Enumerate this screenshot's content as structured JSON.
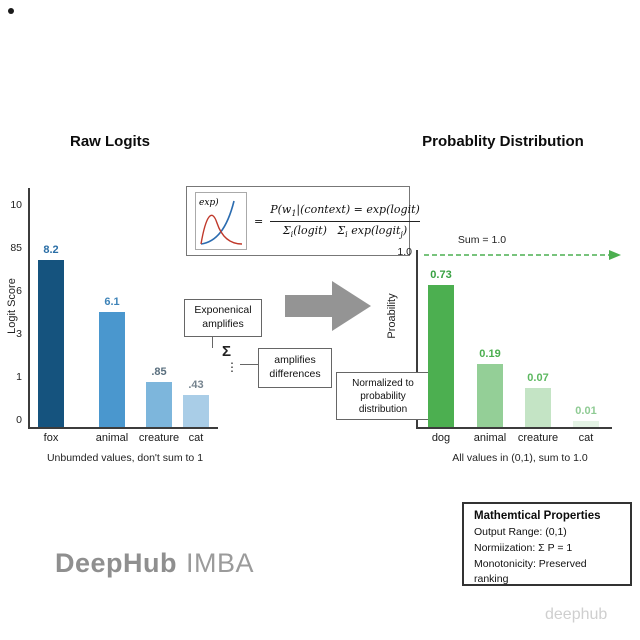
{
  "chart_data": [
    {
      "type": "bar",
      "title": "Raw Logits",
      "ylabel": "Logit Score",
      "yticks": [
        "10",
        "85",
        "6",
        "3",
        "1",
        "0"
      ],
      "ylim": [
        0,
        10
      ],
      "categories": [
        "fox",
        "animal",
        "creature",
        "cat"
      ],
      "values": [
        8.2,
        6.1,
        0.85,
        0.43
      ],
      "value_labels": [
        "8.2",
        "6.1",
        ".85",
        ".43"
      ],
      "bar_colors": [
        "#15537e",
        "#4a97ce",
        "#7db6dc",
        "#a9cde7"
      ],
      "label_colors": [
        "#2a6ea6",
        "#3e83b8",
        "#5a6f7e",
        "#75838e"
      ],
      "caption": "Unbumded values, don't sum to 1",
      "grid": false,
      "legend": false
    },
    {
      "type": "bar",
      "title": "Probablity Distribution",
      "ylabel": "Proability",
      "yticks": [
        "1.0"
      ],
      "ylim": [
        0,
        1
      ],
      "sum_annotation": "Sum = 1.0",
      "categories": [
        "dog",
        "animal",
        "creature",
        "cat"
      ],
      "values": [
        0.73,
        0.19,
        0.07,
        0.01
      ],
      "value_labels": [
        "0.73",
        "0.19",
        "0.07",
        "0.01"
      ],
      "bar_colors": [
        "#4caf50",
        "#94cf97",
        "#c4e4c5",
        "#e4f3e5"
      ],
      "label_colors": [
        "#38a142",
        "#4caf50",
        "#5cb860",
        "#8fcb94"
      ],
      "caption": "All values in (0,1), sum to 1.0",
      "callout": "Normalized to\nprobability\ndistribution",
      "grid": false,
      "legend": false
    }
  ],
  "formula": {
    "exp_label": "exp)",
    "equals": "=",
    "num_a": "P(w",
    "num_sub": "1",
    "num_b": "|(context) = exp(logit)",
    "den_a": "Σ",
    "den_sub1": "i",
    "den_b": "(logit)   Σ",
    "den_sub2": "i",
    "den_c": " exp(logit",
    "den_sub3": "j",
    "den_d": ")"
  },
  "annotations": {
    "box1": "Exponenical\namplifies",
    "sigma": "Σ",
    "dots": "⋮",
    "box2": "amplifies\ndifferences"
  },
  "properties_box": {
    "title": "Mathemtical Properties",
    "lines": [
      "Output Range: (0,1)",
      "Normiization: Σ P = 1",
      "Monotonicity: Preserved ranking"
    ]
  },
  "watermark": {
    "part1": "DeepHub",
    "part2": "IMBA"
  },
  "corner_watermark": "deephub",
  "colors": {
    "green_accent": "#4caf50",
    "arrow_gray": "#949494",
    "dark_blue": "#15537e"
  }
}
